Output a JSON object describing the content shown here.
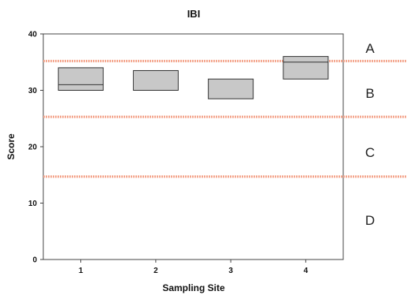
{
  "chart_data": {
    "type": "box",
    "title": "IBI",
    "xlabel": "Sampling Site",
    "ylabel": "Score",
    "categories": [
      "1",
      "2",
      "3",
      "4"
    ],
    "ylim": [
      0,
      40
    ],
    "yticks": [
      0,
      10,
      20,
      30,
      40
    ],
    "boxes": [
      {
        "x": "1",
        "low": 30,
        "high": 34,
        "median": 31
      },
      {
        "x": "2",
        "low": 30,
        "high": 33.5,
        "median": null
      },
      {
        "x": "3",
        "low": 28.5,
        "high": 32,
        "median": null
      },
      {
        "x": "4",
        "low": 32,
        "high": 36,
        "median": 35
      }
    ],
    "thresholds": [
      {
        "value": 35.2,
        "color": "#f4a58c"
      },
      {
        "value": 25.3,
        "color": "#f4a58c"
      },
      {
        "value": 14.7,
        "color": "#f4a58c"
      }
    ],
    "zones": [
      {
        "label": "A",
        "y": 37.5
      },
      {
        "label": "B",
        "y": 29.5
      },
      {
        "label": "C",
        "y": 19
      },
      {
        "label": "D",
        "y": 7
      }
    ],
    "box_fill": "#c8c8c8",
    "box_stroke": "#333333"
  }
}
